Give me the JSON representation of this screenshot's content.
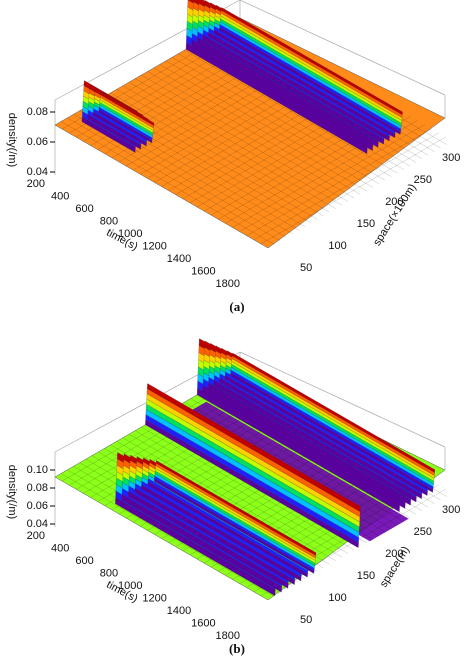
{
  "figures": [
    {
      "density_label": "density(/m)",
      "density_ticks": [
        "0.04",
        "0.06",
        "0.08"
      ],
      "time_label": "time(s)",
      "time_ticks": [
        200,
        400,
        600,
        800,
        1000,
        1200,
        1400,
        1600,
        1800
      ],
      "space_label": "space(×100m)",
      "space_ticks": [
        50,
        100,
        150,
        200,
        250,
        300
      ],
      "caption": "(a)"
    },
    {
      "density_label": "density(/m)",
      "density_ticks": [
        "0.04",
        "0.06",
        "0.08",
        "0.10"
      ],
      "time_label": "time(s)",
      "time_ticks": [
        200,
        400,
        600,
        800,
        1000,
        1200,
        1400,
        1600,
        1800
      ],
      "space_label": "space(m)",
      "space_ticks": [
        50,
        100,
        150,
        200,
        250,
        300
      ],
      "caption": "(b)"
    }
  ]
}
